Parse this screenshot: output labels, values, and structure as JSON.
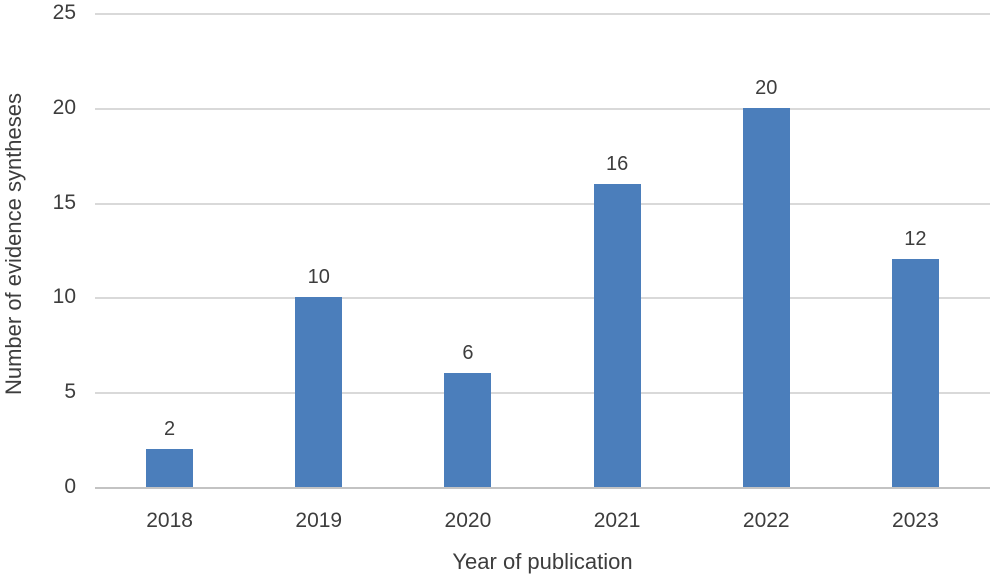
{
  "chart_data": {
    "type": "bar",
    "title": "",
    "categories": [
      "2018",
      "2019",
      "2020",
      "2021",
      "2022",
      "2023"
    ],
    "values": [
      2,
      10,
      6,
      16,
      20,
      12
    ],
    "data_labels": [
      "2",
      "10",
      "6",
      "16",
      "20",
      "12"
    ],
    "xlabel": "Year of publication",
    "ylabel": "Number of evidence syntheses",
    "ylim": [
      0,
      25
    ],
    "yticks": [
      0,
      5,
      10,
      15,
      20,
      25
    ],
    "grid": true,
    "legend": false,
    "colors": {
      "bar": "#4b7ebb",
      "gridline": "#d9d9d9",
      "axis_line": "#c3c3c3",
      "text": "#3d3d3d",
      "background": "#ffffff"
    }
  }
}
